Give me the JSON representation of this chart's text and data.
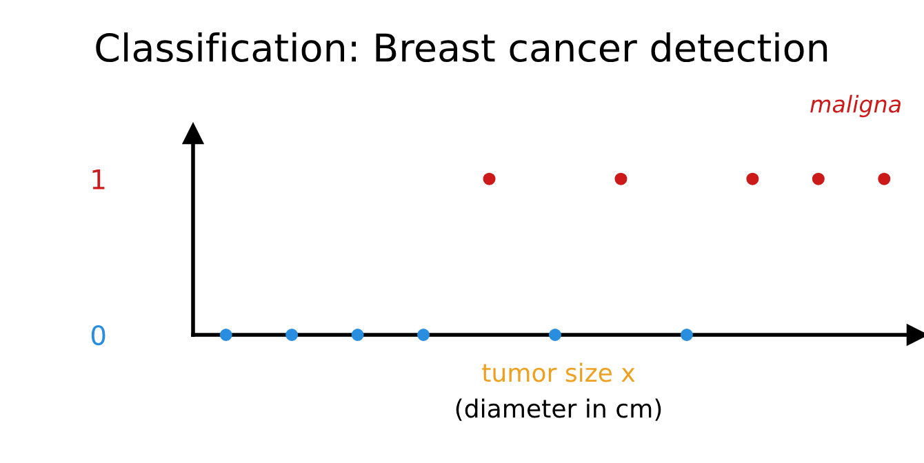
{
  "chart_data": {
    "type": "scatter",
    "title": "Classification: Breast cancer detection",
    "xlabel": "tumor size x",
    "annotations": [
      "(diameter in cm)",
      "maligna"
    ],
    "categories": [
      null,
      null,
      null,
      null,
      null,
      null,
      null,
      null,
      null,
      null,
      null
    ],
    "series": [
      {
        "color": "#2a8ee0",
        "values": [
          0,
          0,
          0,
          0,
          null,
          0,
          null,
          0,
          null,
          null,
          null
        ]
      },
      {
        "color": "#cc1a1a",
        "values": [
          null,
          null,
          null,
          null,
          1,
          null,
          1,
          null,
          1,
          1,
          1
        ]
      }
    ],
    "ylim": [
      0,
      1.29
    ],
    "yticks": [
      0,
      1
    ],
    "tick_labels": "y",
    "grid": false,
    "legend": false,
    "marker": "circle"
  }
}
